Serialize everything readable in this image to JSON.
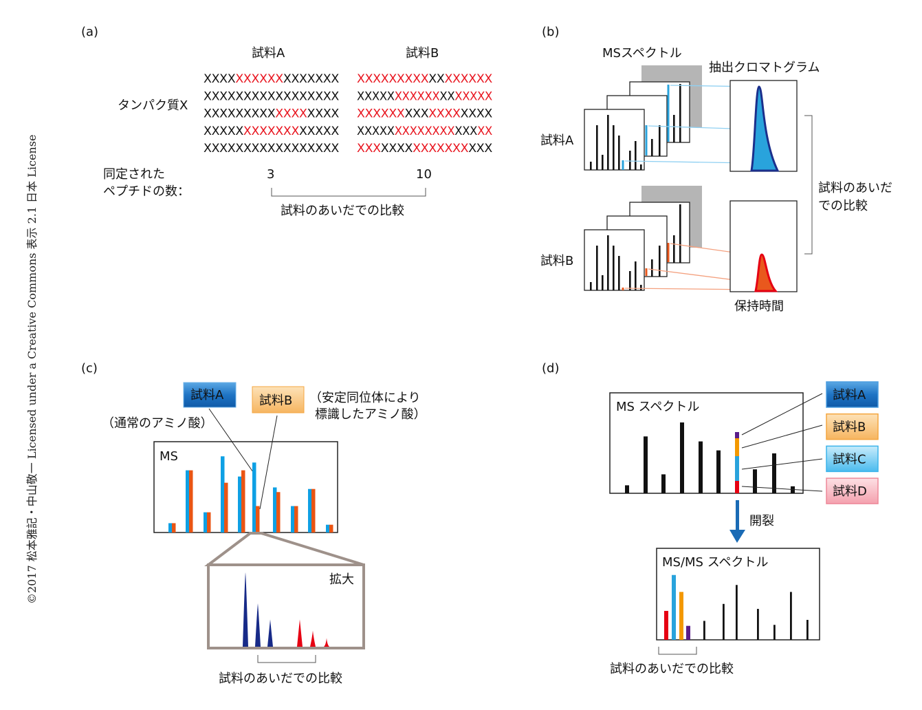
{
  "copyright": "©2017 松本雅記・中山敬一 Licensed under a Creative Commons 表示 2.1 日本 License",
  "panel_a": {
    "label": "(a)",
    "sample_a": "試料A",
    "sample_b": "試料B",
    "protein": "タンパク質X",
    "identified_line1": "同定された",
    "identified_line2": "ペプチドの数：",
    "count_a": "3",
    "count_b": "10",
    "comparison": "試料のあいだでの比較",
    "colors": {
      "match": "#e8141e",
      "nomatch": "#111111"
    },
    "rows_a": [
      [
        [
          "XXXX",
          false
        ],
        [
          "XXXXXX",
          true
        ],
        [
          "XXXXXXX",
          false
        ]
      ],
      [
        [
          "XXXXXXXXXXXXXXXXX",
          false
        ]
      ],
      [
        [
          "XXXXXXXXX",
          false
        ],
        [
          "XXXX",
          true
        ],
        [
          "XXXX",
          false
        ]
      ],
      [
        [
          "XXXXX",
          false
        ],
        [
          "XXXXXXX",
          true
        ],
        [
          "XXXXX",
          false
        ]
      ],
      [
        [
          "XXXXXXXXXXXXXXXXX",
          false
        ]
      ]
    ],
    "rows_b": [
      [
        [
          "XXXXXXXXX",
          true
        ],
        [
          "XX",
          false
        ],
        [
          "XXXXXX",
          true
        ]
      ],
      [
        [
          "XXXXX",
          false
        ],
        [
          "XXXXXX",
          true
        ],
        [
          "XX",
          false
        ],
        [
          "XXXXX",
          true
        ]
      ],
      [
        [
          "XXXXXX",
          true
        ],
        [
          "XXX",
          false
        ],
        [
          "XXXX",
          true
        ],
        [
          "XXXX",
          false
        ]
      ],
      [
        [
          "XXXXX",
          false
        ],
        [
          "XXXXXXXX",
          true
        ],
        [
          "XXX",
          false
        ],
        [
          "XX",
          true
        ]
      ],
      [
        [
          "XXX",
          true
        ],
        [
          "XXXX",
          false
        ],
        [
          "XXXXXXX",
          true
        ],
        [
          "XXX",
          false
        ]
      ]
    ]
  },
  "panel_b": {
    "label": "(b)",
    "ms_spectrum": "MSスペクトル",
    "xic": "抽出クロマトグラム",
    "sample_a": "試料A",
    "sample_b": "試料B",
    "comparison_line1": "試料のあいだ",
    "comparison_line2": "での比較",
    "retention_time": "保持時間",
    "colors": {
      "a": "#29a3dc",
      "b": "#e9581d"
    }
  },
  "panel_c": {
    "label": "(c)",
    "sample_a": "試料A",
    "sample_a_note": "（通常のアミノ酸）",
    "sample_b": "試料B",
    "sample_b_note_line1": "（安定同位体により",
    "sample_b_note_line2": "標識したアミノ酸）",
    "ms": "MS",
    "zoom": "拡大",
    "comparison": "試料のあいだでの比較",
    "ms_pairs": [
      [
        6,
        6
      ],
      [
        40,
        40
      ],
      [
        13,
        13
      ],
      [
        49,
        32
      ],
      [
        36,
        40
      ],
      [
        45,
        17
      ],
      [
        29,
        26
      ],
      [
        17,
        17
      ],
      [
        28,
        28
      ],
      [
        5,
        5
      ]
    ],
    "zoom_peaks_a": [
      60,
      35,
      22
    ],
    "zoom_peaks_b": [
      22,
      13,
      7
    ],
    "colors": {
      "light": "#0ea0e4",
      "heavy": "#ea5514",
      "zoom_a": "#172a88",
      "zoom_b": "#e60012"
    }
  },
  "panel_d": {
    "label": "(d)",
    "ms_spectrum": "MS スペクトル",
    "msms_spectrum": "MS/MS スペクトル",
    "cleavage": "開裂",
    "comparison": "試料のあいだでの比較",
    "samples": [
      {
        "name": "試料A",
        "color": "#1a6fbd"
      },
      {
        "name": "試料B",
        "color": "#f6b560"
      },
      {
        "name": "試料C",
        "color": "#5cc3ee"
      },
      {
        "name": "試料D",
        "color": "#f5a3b0"
      }
    ],
    "ms_peaks": [
      8,
      57,
      19,
      71,
      52,
      43,
      61,
      24,
      40,
      7
    ],
    "reporter_peaks": [
      {
        "v": 29,
        "color": "#e60012"
      },
      {
        "v": 65,
        "color": "#29a3dc"
      },
      {
        "v": 48,
        "color": "#f39800"
      },
      {
        "v": 14,
        "color": "#5a1d8a"
      }
    ],
    "fragment_peaks": [
      19,
      36,
      55,
      31,
      15,
      48,
      20
    ]
  }
}
